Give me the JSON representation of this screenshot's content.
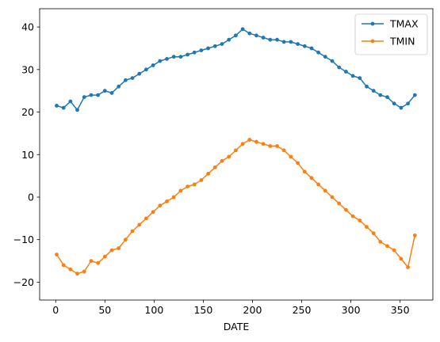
{
  "chart_data": {
    "type": "line",
    "title": "",
    "xlabel": "DATE",
    "ylabel": "",
    "xlim": [
      -16.3,
      383.3
    ],
    "ylim": [
      -24.2,
      44.3
    ],
    "xticks": [
      0,
      50,
      100,
      150,
      200,
      250,
      300,
      350
    ],
    "yticks": [
      -20,
      -10,
      0,
      10,
      20,
      30,
      40
    ],
    "grid": false,
    "legend_position": "top-right",
    "marker": "circle",
    "series": [
      {
        "name": "TMAX",
        "color": "#1f77b4",
        "x": [
          1,
          8,
          15,
          22,
          29,
          36,
          43,
          50,
          57,
          64,
          71,
          78,
          85,
          92,
          99,
          106,
          113,
          120,
          127,
          134,
          141,
          148,
          155,
          162,
          169,
          176,
          183,
          190,
          197,
          204,
          211,
          218,
          225,
          232,
          239,
          246,
          253,
          260,
          267,
          274,
          281,
          288,
          295,
          302,
          309,
          316,
          323,
          330,
          337,
          344,
          351,
          358,
          365
        ],
        "values": [
          21.5,
          21.0,
          22.5,
          20.5,
          23.5,
          24.0,
          24.0,
          25.0,
          24.5,
          26.0,
          27.5,
          28.0,
          29.0,
          30.0,
          31.0,
          32.0,
          32.5,
          33.0,
          33.0,
          33.5,
          34.0,
          34.5,
          35.0,
          35.5,
          36.0,
          37.0,
          38.0,
          39.5,
          38.5,
          38.0,
          37.5,
          37.0,
          37.0,
          36.5,
          36.5,
          36.0,
          35.5,
          35.0,
          34.0,
          33.0,
          32.0,
          30.5,
          29.5,
          28.5,
          28.0,
          26.0,
          25.0,
          24.0,
          23.5,
          22.0,
          21.0,
          22.0,
          24.0
        ]
      },
      {
        "name": "TMIN",
        "color": "#ff7f0e",
        "x": [
          1,
          8,
          15,
          22,
          29,
          36,
          43,
          50,
          57,
          64,
          71,
          78,
          85,
          92,
          99,
          106,
          113,
          120,
          127,
          134,
          141,
          148,
          155,
          162,
          169,
          176,
          183,
          190,
          197,
          204,
          211,
          218,
          225,
          232,
          239,
          246,
          253,
          260,
          267,
          274,
          281,
          288,
          295,
          302,
          309,
          316,
          323,
          330,
          337,
          344,
          351,
          358,
          365
        ],
        "values": [
          -13.5,
          -16.0,
          -17.0,
          -18.0,
          -17.5,
          -15.0,
          -15.5,
          -14.0,
          -12.5,
          -12.0,
          -10.0,
          -8.0,
          -6.5,
          -5.0,
          -3.5,
          -2.0,
          -1.0,
          0.0,
          1.5,
          2.5,
          3.0,
          4.0,
          5.5,
          7.0,
          8.5,
          9.5,
          11.0,
          12.5,
          13.5,
          13.0,
          12.5,
          12.0,
          12.0,
          11.0,
          9.5,
          8.0,
          6.0,
          4.5,
          3.0,
          1.5,
          0.0,
          -1.5,
          -3.0,
          -4.5,
          -5.5,
          -7.0,
          -8.5,
          -10.5,
          -11.5,
          -12.5,
          -14.5,
          -16.5,
          -9.0
        ]
      }
    ]
  }
}
